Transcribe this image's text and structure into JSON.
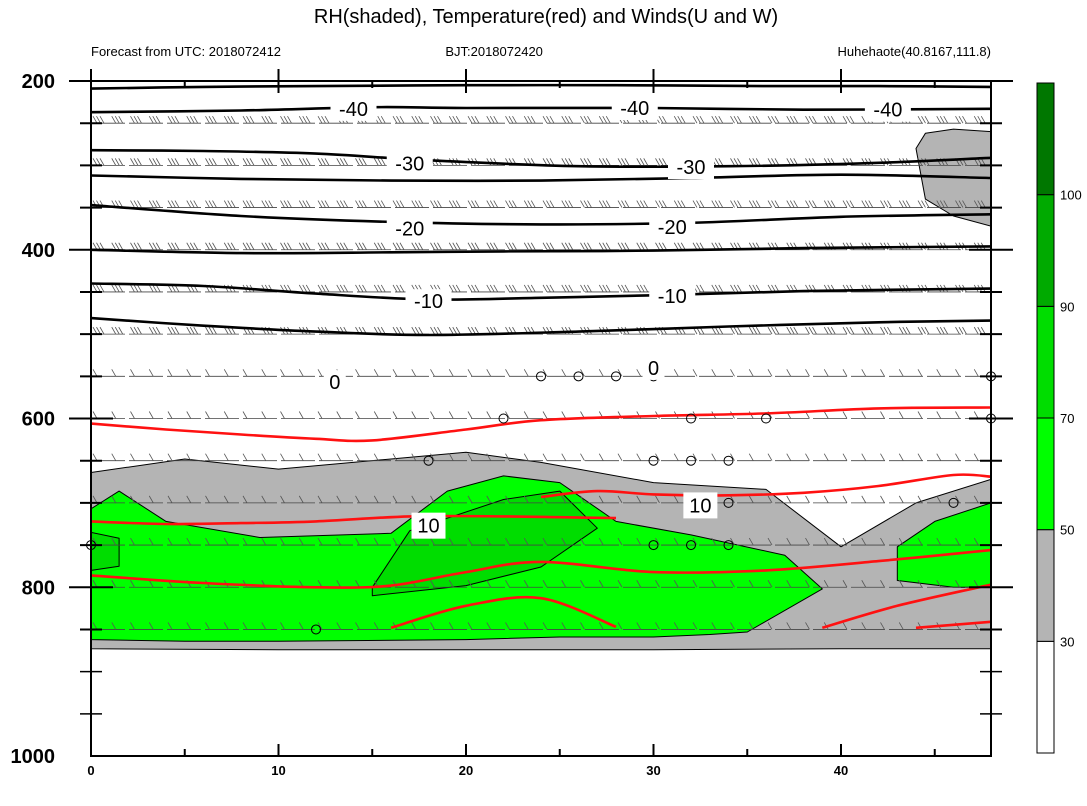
{
  "chart_data": {
    "type": "contour",
    "title": "RH(shaded), Temperature(red) and Winds(U and W)",
    "subtitle_left": "Forecast from UTC: 2018072412",
    "subtitle_center": "BJT:2018072420",
    "subtitle_right": "Huhehaote(40.8167,111.8)",
    "x_ticks": [
      "0",
      "10",
      "20",
      "30",
      "40"
    ],
    "x_tick_values": [
      0,
      10,
      20,
      30,
      40
    ],
    "xlim": [
      0,
      48
    ],
    "y_ticks": [
      "200",
      "400",
      "600",
      "800",
      "1000"
    ],
    "y_tick_values": [
      200,
      400,
      600,
      800,
      1000
    ],
    "ylim": [
      200,
      1000
    ],
    "y_axis": "pressure (hPa), decreasing upward",
    "levels": [
      200,
      250,
      300,
      350,
      400,
      450,
      500,
      550,
      600,
      650,
      700,
      750,
      800,
      850
    ],
    "colorbar": {
      "labels": [
        "30",
        "50",
        "70",
        "90",
        "100"
      ],
      "values": [
        30,
        50,
        70,
        90,
        100
      ],
      "colors": [
        "#ffffff",
        "#b4b4b4",
        "#00ff00",
        "#00dd00",
        "#00aa00",
        "#007700"
      ],
      "boundaries": [
        0,
        30,
        50,
        70,
        90,
        100,
        110
      ]
    },
    "black_contour_labels": [
      {
        "text": "-40",
        "x": 14,
        "p": 233
      },
      {
        "text": "-40",
        "x": 29,
        "p": 232
      },
      {
        "text": "-40",
        "x": 42.5,
        "p": 234
      },
      {
        "text": "-30",
        "x": 17,
        "p": 298
      },
      {
        "text": "-30",
        "x": 32,
        "p": 302
      },
      {
        "text": "-20",
        "x": 17,
        "p": 375
      },
      {
        "text": "-20",
        "x": 31,
        "p": 373
      },
      {
        "text": "-10",
        "x": 18,
        "p": 461
      },
      {
        "text": "-10",
        "x": 31,
        "p": 455
      },
      {
        "text": "0",
        "x": 13,
        "p": 557
      },
      {
        "text": "0",
        "x": 30,
        "p": 540
      }
    ],
    "red_contour_labels": [
      {
        "text": "10",
        "x": 18,
        "p": 727
      },
      {
        "text": "10",
        "x": 32.5,
        "p": 703
      }
    ],
    "black_isotherms": [
      {
        "label": "-40",
        "x": [
          0,
          6,
          12,
          20,
          28,
          36,
          42,
          48
        ],
        "p": [
          209,
          207,
          206,
          205,
          205,
          206,
          206,
          207
        ]
      },
      {
        "label": "-40",
        "x": [
          0,
          8,
          15,
          20,
          30,
          38,
          48
        ],
        "p": [
          237,
          235,
          231,
          232,
          232,
          234,
          233
        ]
      },
      {
        "label": "-30",
        "x": [
          0,
          6,
          12,
          18,
          26,
          34,
          42,
          48
        ],
        "p": [
          282,
          283,
          286,
          294,
          301,
          301,
          297,
          291
        ]
      },
      {
        "label": "-30",
        "x": [
          0,
          8,
          16,
          24,
          32,
          40,
          48
        ],
        "p": [
          312,
          316,
          318,
          318,
          315,
          311,
          315
        ]
      },
      {
        "label": "-20",
        "x": [
          0,
          8,
          16,
          24,
          32,
          40,
          48
        ],
        "p": [
          347,
          360,
          367,
          370,
          368,
          361,
          358
        ]
      },
      {
        "label": "-20",
        "x": [
          0,
          8,
          16,
          22,
          30,
          38,
          48
        ],
        "p": [
          400,
          404,
          403,
          402,
          401,
          398,
          396
        ]
      },
      {
        "label": "-10",
        "x": [
          0,
          6,
          12,
          18,
          24,
          30,
          38,
          48
        ],
        "p": [
          440,
          443,
          452,
          459,
          457,
          454,
          449,
          446
        ]
      },
      {
        "label": "-10",
        "x": [
          0,
          6,
          12,
          18,
          26,
          34,
          42,
          48
        ],
        "p": [
          481,
          490,
          497,
          501,
          497,
          491,
          486,
          484
        ]
      }
    ],
    "red_isotherms": [
      {
        "x": [
          0,
          4,
          8,
          12,
          15,
          20,
          24,
          30,
          36,
          42,
          48
        ],
        "p": [
          606,
          613,
          619,
          624,
          626,
          613,
          602,
          597,
          594,
          588,
          587
        ]
      },
      {
        "x": [
          24,
          27,
          30,
          34,
          38,
          42,
          46,
          48
        ],
        "p": [
          693,
          686,
          690,
          691,
          688,
          680,
          667,
          669
        ]
      },
      {
        "x": [
          0,
          4,
          8,
          12,
          17,
          22,
          25,
          28
        ],
        "p": [
          722,
          725,
          724,
          722,
          716,
          716,
          717,
          718
        ]
      },
      {
        "x": [
          0,
          6,
          12,
          16,
          20,
          24,
          30,
          36,
          42,
          48
        ],
        "p": [
          786,
          795,
          800,
          798,
          782,
          770,
          782,
          780,
          769,
          756
        ]
      },
      {
        "x": [
          16,
          20,
          24,
          28
        ],
        "p": [
          848,
          822,
          813,
          847
        ]
      },
      {
        "x": [
          39,
          43,
          48
        ],
        "p": [
          848,
          822,
          797
        ]
      },
      {
        "x": [
          44,
          48
        ],
        "p": [
          848,
          841
        ]
      }
    ],
    "rh_regions": [
      {
        "rh": 40,
        "x": [
          0,
          5,
          10,
          16,
          20,
          24,
          30,
          36,
          40,
          44,
          48,
          48,
          40,
          30,
          20,
          10,
          0
        ],
        "p": [
          664,
          648,
          660,
          648,
          640,
          652,
          676,
          684,
          752,
          700,
          672,
          873,
          873,
          874,
          874,
          874,
          873
        ]
      },
      {
        "rh": 40,
        "x": [
          44,
          44.5,
          46,
          48,
          48,
          46,
          44.5
        ],
        "p": [
          280,
          262,
          257,
          260,
          372,
          360,
          340
        ]
      },
      {
        "rh": 60,
        "x": [
          0,
          1.5,
          4,
          9,
          16,
          19,
          22,
          25,
          28,
          32,
          37,
          39,
          35,
          33,
          30,
          25,
          20,
          10,
          5,
          0
        ],
        "p": [
          707,
          686,
          722,
          741,
          736,
          686,
          668,
          676,
          722,
          738,
          762,
          802,
          853,
          856,
          859,
          859,
          862,
          864,
          864,
          862
        ]
      },
      {
        "rh": 60,
        "x": [
          43,
          45,
          48,
          48,
          46,
          43
        ],
        "p": [
          752,
          722,
          700,
          800,
          800,
          792
        ]
      },
      {
        "rh": 80,
        "x": [
          0,
          1.5,
          1.5,
          0
        ],
        "p": [
          735,
          742,
          775,
          780
        ]
      },
      {
        "rh": 80,
        "x": [
          15,
          17,
          22,
          25,
          27,
          24,
          20,
          15
        ],
        "p": [
          800,
          733,
          696,
          686,
          730,
          776,
          798,
          810
        ]
      }
    ],
    "calm_circles": [
      {
        "x": 24,
        "p": 550
      },
      {
        "x": 26,
        "p": 550
      },
      {
        "x": 28,
        "p": 550
      },
      {
        "x": 30,
        "p": 550
      },
      {
        "x": 48,
        "p": 550
      },
      {
        "x": 22,
        "p": 600
      },
      {
        "x": 32,
        "p": 600
      },
      {
        "x": 36,
        "p": 600
      },
      {
        "x": 48,
        "p": 600
      },
      {
        "x": 18,
        "p": 650
      },
      {
        "x": 30,
        "p": 650
      },
      {
        "x": 32,
        "p": 650
      },
      {
        "x": 34,
        "p": 650
      },
      {
        "x": 34,
        "p": 700
      },
      {
        "x": 46,
        "p": 700
      },
      {
        "x": 0,
        "p": 750
      },
      {
        "x": 30,
        "p": 750
      },
      {
        "x": 32,
        "p": 750
      },
      {
        "x": 34,
        "p": 750
      },
      {
        "x": 12,
        "p": 850
      }
    ]
  }
}
